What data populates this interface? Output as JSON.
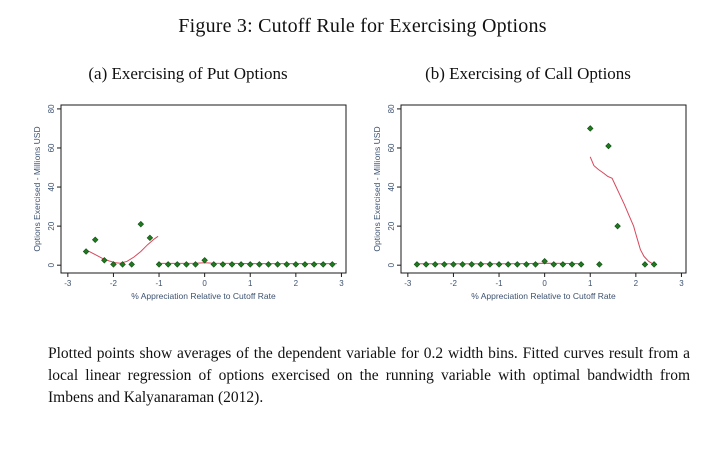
{
  "figure": {
    "title": "Figure 3: Cutoff Rule for Exercising Options",
    "caption": "Plotted points show averages of the dependent variable for 0.2 width bins. Fitted curves result from a local linear regression of options exercised on the running variable with optimal bandwidth from Imbens and Kalyanaraman (2012)."
  },
  "colors": {
    "marker_fill": "#1f7a1f",
    "marker_stroke": "#0f4d12",
    "fit_line": "#d8475c",
    "axis_text": "#3d5270",
    "frame": "#1a1a1a"
  },
  "chart_data": [
    {
      "type": "scatter",
      "panel_label": "(a) Exercising of Put Options",
      "xlabel": "% Appreciation Relative to Cutoff Rate",
      "ylabel": "Options Exercised - Millions USD",
      "xlim": [
        -3.15,
        3.1
      ],
      "ylim": [
        -4,
        82
      ],
      "xticks": [
        -3,
        -2,
        -1,
        0,
        1,
        2,
        3
      ],
      "yticks": [
        0,
        20,
        40,
        60,
        80
      ],
      "grid": false,
      "legend": "none",
      "points": [
        [
          -2.6,
          7
        ],
        [
          -2.4,
          13
        ],
        [
          -2.2,
          2.5
        ],
        [
          -2.0,
          0.4
        ],
        [
          -1.8,
          0.4
        ],
        [
          -1.6,
          0.4
        ],
        [
          -1.4,
          21
        ],
        [
          -1.2,
          14
        ],
        [
          -1.0,
          0.4
        ],
        [
          -0.8,
          0.4
        ],
        [
          -0.6,
          0.4
        ],
        [
          -0.4,
          0.4
        ],
        [
          -0.2,
          0.4
        ],
        [
          0,
          2.5
        ],
        [
          0.2,
          0.4
        ],
        [
          0.4,
          0.4
        ],
        [
          0.6,
          0.4
        ],
        [
          0.8,
          0.4
        ],
        [
          1.0,
          0.4
        ],
        [
          1.2,
          0.4
        ],
        [
          1.4,
          0.4
        ],
        [
          1.6,
          0.4
        ],
        [
          1.8,
          0.4
        ],
        [
          2.0,
          0.4
        ],
        [
          2.2,
          0.4
        ],
        [
          2.4,
          0.4
        ],
        [
          2.6,
          0.4
        ],
        [
          2.8,
          0.4
        ]
      ],
      "fit_segments": [
        [
          [
            -2.55,
            7.2
          ],
          [
            -2.4,
            5.4
          ],
          [
            -2.25,
            3.6
          ],
          [
            -2.1,
            2.2
          ],
          [
            -1.95,
            1.2
          ],
          [
            -1.85,
            1.0
          ],
          [
            -1.7,
            2.0
          ],
          [
            -1.55,
            4.2
          ],
          [
            -1.4,
            7.0
          ],
          [
            -1.25,
            10.5
          ],
          [
            -1.1,
            13.5
          ],
          [
            -1.02,
            14.8
          ]
        ],
        [
          [
            -1.0,
            0.9
          ],
          [
            -0.6,
            0.9
          ],
          [
            -0.2,
            1.0
          ],
          [
            0,
            1.2
          ],
          [
            0.2,
            1.0
          ],
          [
            0.6,
            0.9
          ],
          [
            1.0,
            0.8
          ],
          [
            1.5,
            0.8
          ],
          [
            2.0,
            0.8
          ],
          [
            2.5,
            0.8
          ],
          [
            2.9,
            0.8
          ]
        ]
      ]
    },
    {
      "type": "scatter",
      "panel_label": "(b) Exercising of Call Options",
      "xlabel": "% Appreciation Relative to Cutoff Rate",
      "ylabel": "Options Exercised - Millions USD",
      "xlim": [
        -3.15,
        3.1
      ],
      "ylim": [
        -4,
        82
      ],
      "xticks": [
        -3,
        -2,
        -1,
        0,
        1,
        2,
        3
      ],
      "yticks": [
        0,
        20,
        40,
        60,
        80
      ],
      "grid": false,
      "legend": "none",
      "points": [
        [
          -2.8,
          0.4
        ],
        [
          -2.6,
          0.4
        ],
        [
          -2.4,
          0.4
        ],
        [
          -2.2,
          0.4
        ],
        [
          -2.0,
          0.4
        ],
        [
          -1.8,
          0.4
        ],
        [
          -1.6,
          0.4
        ],
        [
          -1.4,
          0.4
        ],
        [
          -1.2,
          0.4
        ],
        [
          -1.0,
          0.4
        ],
        [
          -0.8,
          0.4
        ],
        [
          -0.6,
          0.4
        ],
        [
          -0.4,
          0.4
        ],
        [
          -0.2,
          0.4
        ],
        [
          0,
          2.0
        ],
        [
          0.2,
          0.4
        ],
        [
          0.4,
          0.4
        ],
        [
          0.6,
          0.4
        ],
        [
          0.8,
          0.4
        ],
        [
          1.0,
          70
        ],
        [
          1.2,
          0.4
        ],
        [
          1.4,
          61
        ],
        [
          1.6,
          20
        ],
        [
          2.2,
          0.4
        ],
        [
          2.4,
          0.4
        ]
      ],
      "fit_segments": [
        [
          [
            -2.75,
            0.7
          ],
          [
            -2.0,
            0.7
          ],
          [
            -1.0,
            0.7
          ],
          [
            -0.5,
            0.8
          ],
          [
            0,
            1.0
          ],
          [
            0.4,
            0.9
          ],
          [
            0.85,
            0.7
          ]
        ],
        [
          [
            1.0,
            55.5
          ],
          [
            1.08,
            51
          ],
          [
            1.18,
            49
          ],
          [
            1.3,
            47
          ],
          [
            1.38,
            45.5
          ],
          [
            1.48,
            44.5
          ],
          [
            1.55,
            41
          ],
          [
            1.65,
            36
          ],
          [
            1.75,
            31
          ],
          [
            1.85,
            25.5
          ],
          [
            1.95,
            20
          ],
          [
            2.0,
            16
          ],
          [
            2.05,
            12
          ],
          [
            2.1,
            8
          ],
          [
            2.18,
            4.5
          ],
          [
            2.28,
            2
          ],
          [
            2.38,
            0.6
          ],
          [
            2.45,
            0.3
          ]
        ]
      ]
    }
  ]
}
